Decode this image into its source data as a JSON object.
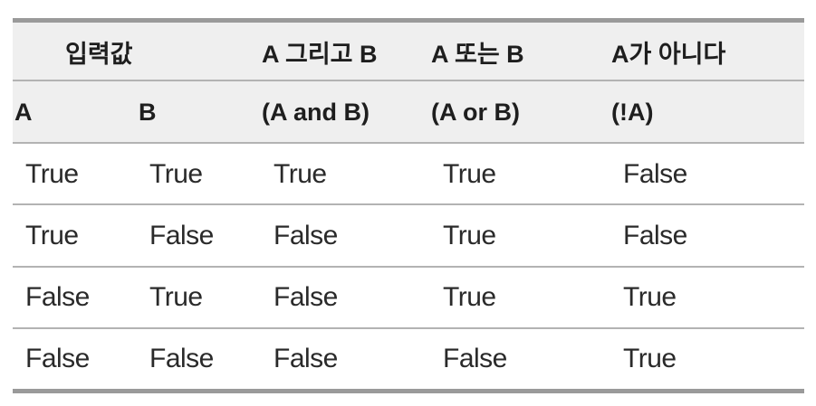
{
  "header_row1": [
    "입력값",
    "A 그리고 B",
    "A 또는 B",
    "A가 아니다"
  ],
  "header_row2": [
    "A",
    "B",
    "(A and B)",
    "(A or B)",
    "(!A)"
  ],
  "rows": [
    [
      "True",
      "True",
      "True",
      "True",
      "False"
    ],
    [
      "True",
      "False",
      "False",
      "True",
      "False"
    ],
    [
      "False",
      "True",
      "False",
      "True",
      "True"
    ],
    [
      "False",
      "False",
      "False",
      "False",
      "True"
    ]
  ]
}
